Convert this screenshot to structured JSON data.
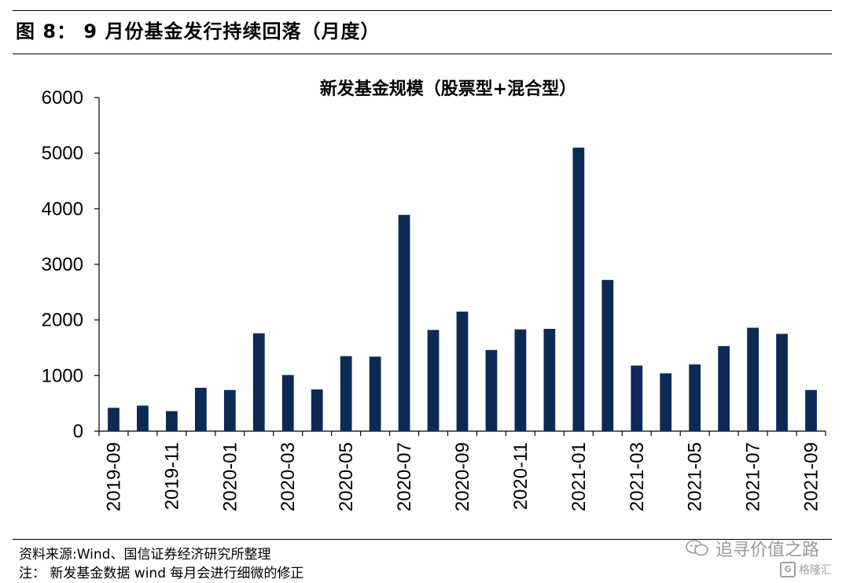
{
  "figure": {
    "title": "图 8：  9 月份基金发行持续回落（月度）",
    "source": "资料来源:Wind、国信证券经济研究所整理",
    "note": "注：  新发基金数据 wind 每月会进行细微的修正"
  },
  "watermark": {
    "text": "追寻价值之路",
    "icon": "wechat-icon",
    "brand_text": "格隆汇",
    "brand_icon": "gelonghui-logo"
  },
  "chart_data": {
    "type": "bar",
    "title": "新发基金规模（股票型+混合型）",
    "xlabel": "",
    "ylabel": "",
    "ylim": [
      0,
      6000
    ],
    "yticks": [
      0,
      1000,
      2000,
      3000,
      4000,
      5000,
      6000
    ],
    "categories": [
      "2019-09",
      "2019-10",
      "2019-11",
      "2019-12",
      "2020-01",
      "2020-02",
      "2020-03",
      "2020-04",
      "2020-05",
      "2020-06",
      "2020-07",
      "2020-08",
      "2020-09",
      "2020-10",
      "2020-11",
      "2020-12",
      "2021-01",
      "2021-02",
      "2021-03",
      "2021-04",
      "2021-05",
      "2021-06",
      "2021-07",
      "2021-08",
      "2021-09"
    ],
    "tick_labels": [
      "2019-09",
      "",
      "2019-11",
      "",
      "2020-01",
      "",
      "2020-03",
      "",
      "2020-05",
      "",
      "2020-07",
      "",
      "2020-09",
      "",
      "2020-11",
      "",
      "2021-01",
      "",
      "2021-03",
      "",
      "2021-05",
      "",
      "2021-07",
      "",
      "2021-09"
    ],
    "values": [
      420,
      460,
      360,
      780,
      740,
      1760,
      1010,
      750,
      1350,
      1340,
      3890,
      1820,
      2150,
      1460,
      1830,
      1840,
      5100,
      2720,
      1180,
      1040,
      1200,
      1530,
      1860,
      1750,
      740
    ],
    "bar_color": "#0d2a55",
    "grid": false,
    "legend": "none"
  }
}
